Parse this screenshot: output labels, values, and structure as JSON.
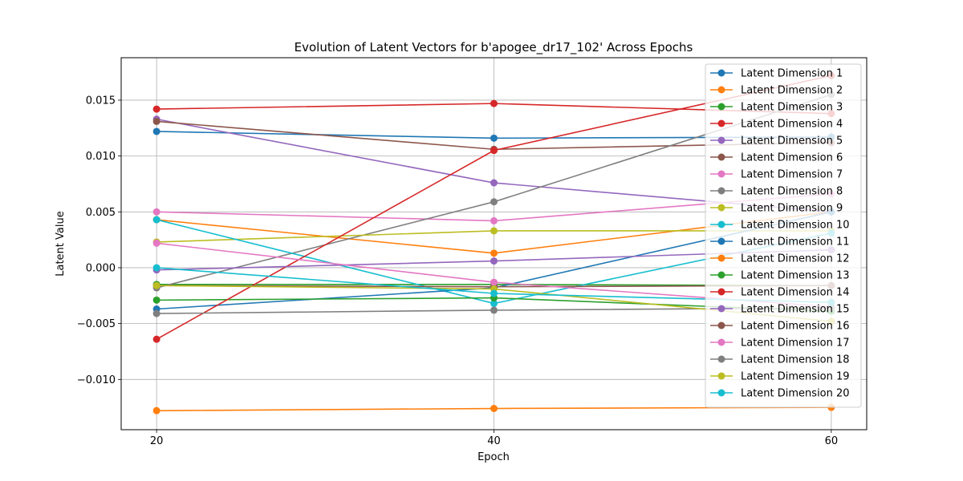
{
  "chart_data": {
    "type": "line",
    "title": "Evolution of Latent Vectors for b'apogee_dr17_102' Across Epochs",
    "xlabel": "Epoch",
    "ylabel": "Latent Value",
    "x": [
      20,
      40,
      60
    ],
    "x_ticks": [
      20,
      40,
      60
    ],
    "x_tick_labels": [
      "20",
      "40",
      "60"
    ],
    "xlim": [
      17.9,
      62.1
    ],
    "ylim": [
      -0.0145,
      0.0188
    ],
    "y_ticks": [
      -0.01,
      -0.005,
      0.0,
      0.005,
      0.01,
      0.015
    ],
    "y_tick_labels": [
      "−0.010",
      "−0.005",
      "0.000",
      "0.005",
      "0.010",
      "0.015"
    ],
    "grid": true,
    "legend_position": "top-right",
    "series": [
      {
        "name": "Latent Dimension 1",
        "color": "#1f77b4",
        "values": [
          0.0122,
          0.0116,
          0.0117
        ]
      },
      {
        "name": "Latent Dimension 2",
        "color": "#ff7f0e",
        "values": [
          0.0043,
          0.0013,
          0.005
        ]
      },
      {
        "name": "Latent Dimension 3",
        "color": "#2ca02c",
        "values": [
          -0.0015,
          -0.0015,
          -0.0016
        ]
      },
      {
        "name": "Latent Dimension 4",
        "color": "#d62728",
        "values": [
          0.0142,
          0.0147,
          0.0138
        ]
      },
      {
        "name": "Latent Dimension 5",
        "color": "#9467bd",
        "values": [
          0.0133,
          0.0076,
          0.005
        ]
      },
      {
        "name": "Latent Dimension 6",
        "color": "#8c564b",
        "values": [
          0.0131,
          0.0106,
          0.0112
        ]
      },
      {
        "name": "Latent Dimension 7",
        "color": "#e377c2",
        "values": [
          0.005,
          0.0042,
          0.0066
        ]
      },
      {
        "name": "Latent Dimension 8",
        "color": "#7f7f7f",
        "values": [
          -0.0018,
          0.0059,
          0.0155
        ]
      },
      {
        "name": "Latent Dimension 9",
        "color": "#bcbd22",
        "values": [
          0.0023,
          0.0033,
          0.0033
        ]
      },
      {
        "name": "Latent Dimension 10",
        "color": "#17becf",
        "values": [
          0.0043,
          -0.0032,
          0.0031
        ]
      },
      {
        "name": "Latent Dimension 11",
        "color": "#1f77b4",
        "values": [
          -0.0037,
          -0.0018,
          0.005
        ]
      },
      {
        "name": "Latent Dimension 12",
        "color": "#ff7f0e",
        "values": [
          -0.0128,
          -0.0126,
          -0.0125
        ]
      },
      {
        "name": "Latent Dimension 13",
        "color": "#2ca02c",
        "values": [
          -0.0029,
          -0.0027,
          -0.0039
        ]
      },
      {
        "name": "Latent Dimension 14",
        "color": "#d62728",
        "values": [
          -0.0064,
          0.0105,
          0.0172
        ]
      },
      {
        "name": "Latent Dimension 15",
        "color": "#9467bd",
        "values": [
          -0.0002,
          0.0006,
          0.0016
        ]
      },
      {
        "name": "Latent Dimension 16",
        "color": "#8c564b",
        "values": [
          -0.0016,
          -0.0017,
          -0.0016
        ]
      },
      {
        "name": "Latent Dimension 17",
        "color": "#e377c2",
        "values": [
          0.0022,
          -0.0013,
          -0.0035
        ]
      },
      {
        "name": "Latent Dimension 18",
        "color": "#7f7f7f",
        "values": [
          -0.0041,
          -0.0038,
          -0.0036
        ]
      },
      {
        "name": "Latent Dimension 19",
        "color": "#bcbd22",
        "values": [
          -0.0016,
          -0.0019,
          -0.0048
        ]
      },
      {
        "name": "Latent Dimension 20",
        "color": "#17becf",
        "values": [
          0.0,
          -0.0023,
          -0.0031
        ]
      }
    ]
  }
}
